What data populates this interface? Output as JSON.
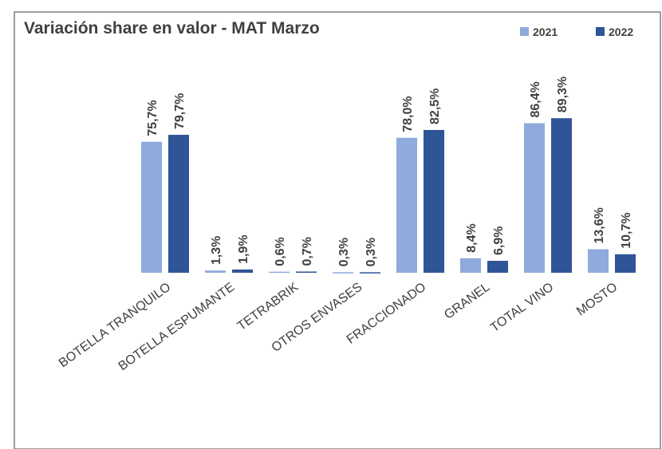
{
  "chart_data": {
    "type": "bar",
    "title": "Variación share en valor - MAT Marzo",
    "categories": [
      "BOTELLA TRANQUILO",
      "BOTELLA ESPUMANTE",
      "TETRABRIK",
      "OTROS ENVASES",
      "FRACCIONADO",
      "GRANEL",
      "TOTAL VINO",
      "MOSTO"
    ],
    "series": [
      {
        "name": "2021",
        "color": "#8faadc",
        "values": [
          75.7,
          1.3,
          0.6,
          0.3,
          78.0,
          8.4,
          86.4,
          13.6
        ],
        "value_labels": [
          "75,7%",
          "1,3%",
          "0,6%",
          "0,3%",
          "78,0%",
          "8,4%",
          "86,4%",
          "13,6%"
        ]
      },
      {
        "name": "2022",
        "color": "#2f5597",
        "values": [
          79.7,
          1.9,
          0.7,
          0.3,
          82.5,
          6.9,
          89.3,
          10.7
        ],
        "value_labels": [
          "79,7%",
          "1,9%",
          "0,7%",
          "0,3%",
          "82,5%",
          "6,9%",
          "89,3%",
          "10,7%"
        ]
      }
    ],
    "ylim": [
      0,
      100
    ],
    "legend": "top-right"
  }
}
